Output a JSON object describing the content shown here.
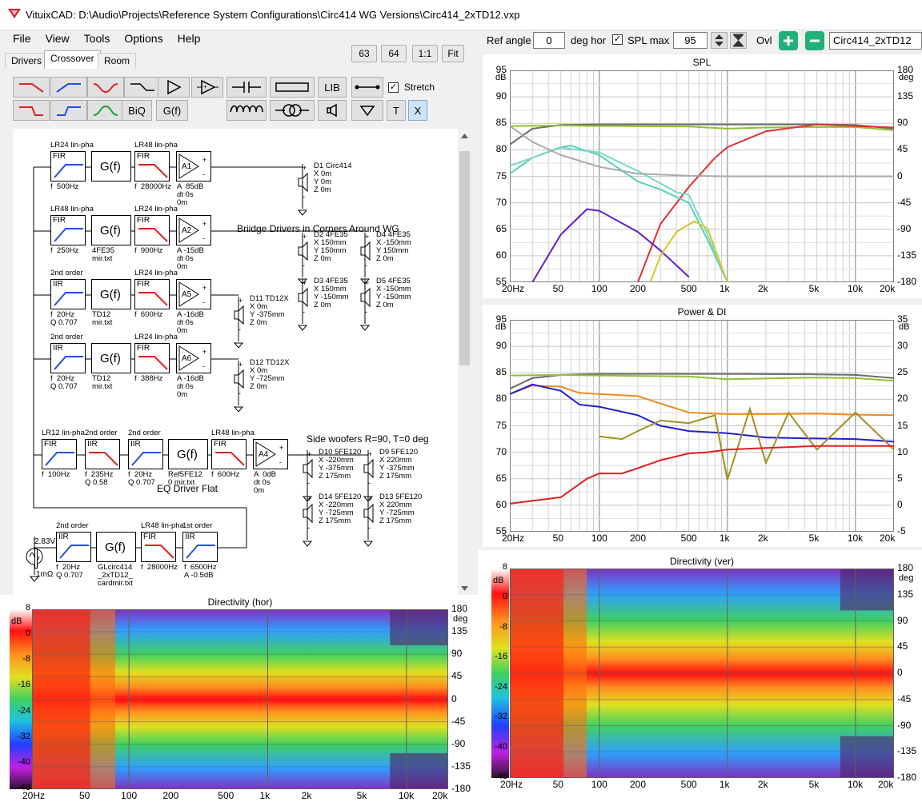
{
  "window": {
    "title": "VituixCAD: D:\\Audio\\Projects\\Reference System Configurations\\Circ414 WG Versions\\Circ414_2xTD12.vxp"
  },
  "menu": {
    "file": "File",
    "view": "View",
    "tools": "Tools",
    "options": "Options",
    "help": "Help"
  },
  "zoom_buttons": [
    "63",
    "64",
    "1:1",
    "Fit"
  ],
  "tabs": [
    "Drivers",
    "Crossover",
    "Room"
  ],
  "active_tab": "Crossover",
  "toolbar": {
    "lib": "LIB",
    "biq": "BiQ",
    "gf": "G(f)",
    "t": "T",
    "x": "X",
    "stretch_label": "Stretch",
    "stretch_checked": true
  },
  "chart_toolbar": {
    "ref_angle_label": "Ref angle",
    "ref_angle_value": "0",
    "deg_hor_label": "deg hor",
    "spl_max_label": "SPL max",
    "spl_max_checked": true,
    "spl_max_value": "95",
    "ovl_label": "Ovl",
    "overlay_select": "Circ414_2xTD12"
  },
  "schematic": {
    "annotations": {
      "bridge": "Briidge Drivers in Corners Around WG",
      "side": "Side woofers  R=90, T=0 deg",
      "eq": "EQ Driver Flat"
    },
    "gf": "G(f)",
    "rows": [
      {
        "blocks": [
          {
            "t": "LR24 lin-pha",
            "type": "FIR",
            "p": "f  500Hz"
          },
          {
            "type": "G(f)",
            "p": ""
          },
          {
            "t": "LR48 lin-pha",
            "type": "FIR",
            "p": "f  28000Hz"
          }
        ],
        "amp": "A1",
        "amp_p": "A  85dB\ndt 0s\n0m",
        "drivers": [
          {
            "n": "D1 Circ414",
            "c": "X 0m\nY 0m\nZ 0m"
          }
        ]
      },
      {
        "blocks": [
          {
            "t": "LR48 lin-pha",
            "type": "FIR",
            "p": "f  250Hz"
          },
          {
            "type": "G(f)",
            "p": "4FE35\nmir.txt"
          },
          {
            "t": "LR24 lin-pha",
            "type": "FIR",
            "p": "f  900Hz"
          }
        ],
        "amp": "A2",
        "amp_p": "A -15dB\ndt 0s\n0m",
        "drivers": [
          {
            "n": "D2 4FE35",
            "c": "X 150mm\nY 150mm\nZ 0m"
          },
          {
            "n": "D4 4FE35",
            "c": "X -150mm\nY 150mm\nZ 0m"
          },
          {
            "n": "D3 4FE35",
            "c": "X 150mm\nY -150mm\nZ 0m"
          },
          {
            "n": "D5 4FE35",
            "c": "X -150mm\nY -150mm\nZ 0m"
          }
        ]
      },
      {
        "blocks": [
          {
            "t": "2nd order",
            "type": "IIR",
            "p": "f  20Hz\nQ 0.707"
          },
          {
            "type": "G(f)",
            "p": "TD12\nmir.txt"
          },
          {
            "t": "LR24 lin-pha",
            "type": "FIR",
            "p": "f  600Hz"
          }
        ],
        "amp": "A5",
        "amp_p": "A -16dB\ndt 0s\n0m",
        "drivers": [
          {
            "n": "D11 TD12X",
            "c": "X 0m\nY -375mm\nZ 0m"
          }
        ]
      },
      {
        "blocks": [
          {
            "t": "2nd order",
            "type": "IIR",
            "p": "f  20Hz\nQ 0.707"
          },
          {
            "type": "G(f)",
            "p": "TD12\nmir.txt"
          },
          {
            "t": "LR24 lin-pha",
            "type": "FIR",
            "p": "f  388Hz"
          }
        ],
        "amp": "A6",
        "amp_p": "A -16dB\ndt 0s\n0m",
        "drivers": [
          {
            "n": "D12 TD12X",
            "c": "X 0m\nY -725mm\nZ 0m"
          }
        ]
      },
      {
        "blocks": [
          {
            "t": "LR12 lin-pha",
            "type": "FIR",
            "p": "f  100Hz"
          },
          {
            "t": "2nd order",
            "type": "IIR",
            "p": "f  235Hz\nQ 0.58"
          },
          {
            "t": "2nd order",
            "type": "IIR",
            "p": "f  20Hz\nQ 0.707"
          },
          {
            "type": "G(f)",
            "p": "Ref5FE12\n0 mir.txt"
          },
          {
            "t": "LR48 lin-pha",
            "type": "FIR",
            "p": "f  600Hz"
          }
        ],
        "amp": "A4",
        "amp_p": "A  0dB\ndt 0s\n0m",
        "drivers": [
          {
            "n": "D10 5FE120",
            "c": "X -220mm\nY -375mm\nZ 175mm"
          },
          {
            "n": "D9 5FE120",
            "c": "X 220mm\nY -375mm\nZ 175mm"
          },
          {
            "n": "D14 5FE120",
            "c": "X -220mm\nY -725mm\nZ 175mm"
          },
          {
            "n": "D13 5FE120",
            "c": "X 220mm\nY -725mm\nZ 175mm"
          }
        ]
      },
      {
        "blocks": [
          {
            "t": "2nd order",
            "type": "IIR",
            "p": "f  20Hz\nQ 0.707"
          },
          {
            "type": "G(f)",
            "p": "GLcirc414\n_2xTD12_\ncardmir.txt"
          },
          {
            "t": "LR48 lin-pha",
            "type": "FIR",
            "p": "f  28000Hz"
          },
          {
            "t": "1st order",
            "type": "IIR",
            "p": "f  6500Hz\nA -0.5dB"
          }
        ]
      }
    ],
    "source": {
      "v": "2.83V",
      "r": "1mΩ"
    }
  },
  "charts": [
    {
      "id": "spl",
      "title": "SPL",
      "left_unit": "dB",
      "right_unit": "deg",
      "left_ticks": [
        "95",
        "90",
        "85",
        "80",
        "75",
        "70",
        "65",
        "60",
        "55"
      ],
      "right_ticks": [
        "180",
        "135",
        "90",
        "45",
        "0",
        "-45",
        "-90",
        "-135",
        "-180"
      ],
      "x_ticks": [
        "20Hz",
        "50",
        "100",
        "200",
        "500",
        "1k",
        "2k",
        "5k",
        "10k",
        "20k"
      ]
    },
    {
      "id": "power",
      "title": "Power & DI",
      "left_unit": "dB",
      "right_unit": "dB",
      "left_ticks": [
        "95",
        "90",
        "85",
        "80",
        "75",
        "70",
        "65",
        "60",
        "55"
      ],
      "right_ticks": [
        "35",
        "30",
        "25",
        "20",
        "15",
        "10",
        "5",
        "0",
        "-5"
      ],
      "x_ticks": [
        "20Hz",
        "50",
        "100",
        "200",
        "500",
        "1k",
        "2k",
        "5k",
        "10k",
        "20k"
      ]
    },
    {
      "id": "dirver",
      "title": "Directivity (ver)",
      "left_unit": "dB",
      "right_unit": "deg",
      "left_ticks": [
        "8",
        "0",
        "-8",
        "-16",
        "-24",
        "-32",
        "-40",
        "-48"
      ],
      "right_ticks": [
        "180",
        "135",
        "90",
        "45",
        "0",
        "-45",
        "-90",
        "-135",
        "-180"
      ],
      "x_ticks": [
        "20Hz",
        "50",
        "100",
        "200",
        "500",
        "1k",
        "2k",
        "5k",
        "10k",
        "20k"
      ]
    },
    {
      "id": "dirhor",
      "title": "Directivity (hor)",
      "left_unit": "dB",
      "right_unit": "deg",
      "left_ticks": [
        "8",
        "0",
        "-8",
        "-16",
        "-24",
        "-32",
        "-40",
        "-48"
      ],
      "right_ticks": [
        "180",
        "135",
        "90",
        "45",
        "0",
        "-45",
        "-90",
        "-135",
        "-180"
      ],
      "x_ticks": [
        "20Hz",
        "50",
        "100",
        "200",
        "500",
        "1k",
        "2k",
        "5k",
        "10k",
        "20k"
      ]
    }
  ],
  "chart_data": [
    {
      "type": "line",
      "title": "SPL",
      "xlabel": "",
      "ylabel": "dB",
      "xlim": [
        20,
        20000
      ],
      "ylim": [
        55,
        95
      ],
      "x_scale": "log",
      "grid": true,
      "series": [
        {
          "color": "#6b6b6b",
          "x": [
            20,
            30,
            50,
            100,
            200,
            500,
            1000,
            2000,
            5000,
            10000,
            20000
          ],
          "y": [
            81,
            84,
            84.7,
            84.8,
            84.8,
            84.8,
            84.8,
            84.8,
            84.8,
            84.7,
            84
          ]
        },
        {
          "color": "#90c030",
          "x": [
            20,
            50,
            100,
            500,
            1000,
            2000,
            5000,
            10000,
            20000
          ],
          "y": [
            84.5,
            84.6,
            84.5,
            84.4,
            84,
            84.2,
            84.3,
            84.3,
            83.7
          ]
        },
        {
          "color": "#e03030",
          "x": [
            200,
            300,
            500,
            800,
            1000,
            2000,
            5000,
            10000,
            20000
          ],
          "y": [
            55,
            66,
            73,
            78.5,
            80.5,
            83.5,
            84.8,
            84.5,
            84.2
          ]
        },
        {
          "color": "#5ad0b8",
          "x": [
            20,
            30,
            50,
            60,
            100,
            200,
            300,
            500,
            700,
            1000
          ],
          "y": [
            75.5,
            78.5,
            80.5,
            80.8,
            79,
            74,
            72.5,
            70,
            63,
            55
          ]
        },
        {
          "color": "#7ad8c8",
          "x": [
            20,
            50,
            100,
            200,
            400,
            500,
            700,
            1000
          ],
          "y": [
            77,
            80.4,
            79.5,
            76,
            72,
            71.5,
            64,
            55
          ]
        },
        {
          "color": "#6020d0",
          "x": [
            30,
            50,
            80,
            100,
            200,
            300,
            500
          ],
          "y": [
            55,
            64,
            68.8,
            68.5,
            64.5,
            61,
            56
          ]
        },
        {
          "color": "#d8c828",
          "x": [
            250,
            300,
            400,
            550,
            700,
            1000
          ],
          "y": [
            55,
            60,
            64.5,
            66.5,
            65.2,
            55
          ]
        },
        {
          "color": "#aaaaaa",
          "x": [
            20,
            30,
            50,
            100,
            200,
            500,
            1000,
            2000,
            5000,
            20000
          ],
          "y": [
            84.5,
            81.5,
            79,
            76.8,
            75.5,
            75.1,
            75,
            75,
            75,
            75
          ]
        }
      ]
    },
    {
      "type": "line",
      "title": "Power & DI",
      "xlabel": "",
      "ylabel": "dB",
      "xlim": [
        20,
        20000
      ],
      "ylim": [
        55,
        95
      ],
      "x_scale": "log",
      "grid": true,
      "series": [
        {
          "color": "#6b6b6b",
          "x": [
            20,
            30,
            50,
            100,
            500,
            1000,
            5000,
            10000,
            20000
          ],
          "y": [
            82,
            84,
            84.6,
            84.8,
            84.8,
            84.8,
            84.7,
            84.6,
            84
          ]
        },
        {
          "color": "#90c030",
          "x": [
            20,
            50,
            100,
            500,
            1000,
            5000,
            10000,
            20000
          ],
          "y": [
            84.5,
            84.6,
            84.5,
            84.3,
            83.8,
            84.1,
            84,
            83.5
          ]
        },
        {
          "color": "#f08a20",
          "x": [
            20,
            30,
            50,
            70,
            100,
            200,
            300,
            500,
            1000,
            2000,
            5000,
            10000,
            20000
          ],
          "y": [
            81,
            82.6,
            82.4,
            81.2,
            81,
            80.6,
            79.2,
            77.5,
            77.2,
            77.2,
            77.3,
            77.1,
            77
          ]
        },
        {
          "color": "#2020d0",
          "x": [
            20,
            30,
            50,
            70,
            100,
            200,
            300,
            500,
            1000,
            2000,
            5000,
            10000,
            20000
          ],
          "y": [
            81,
            82.8,
            81.6,
            79,
            78.6,
            77,
            75,
            74,
            73.6,
            72.8,
            72.6,
            72.5,
            72
          ]
        },
        {
          "color": "#a09020",
          "x": [
            100,
            150,
            200,
            300,
            500,
            800,
            1000,
            1500,
            2000,
            3000,
            5000,
            10000,
            20000
          ],
          "y": [
            73,
            72.5,
            74,
            76,
            75.5,
            77,
            64.8,
            78.2,
            68,
            77.5,
            70.5,
            77.5,
            70.5
          ]
        },
        {
          "color": "#e02020",
          "x": [
            20,
            50,
            80,
            100,
            150,
            200,
            300,
            500,
            700,
            1000,
            2000,
            5000,
            10000,
            20000
          ],
          "y": [
            60.3,
            61.5,
            65,
            66,
            66,
            67,
            68.5,
            69.8,
            70,
            70.5,
            70.8,
            71.2,
            71.2,
            71.2
          ]
        }
      ]
    }
  ]
}
